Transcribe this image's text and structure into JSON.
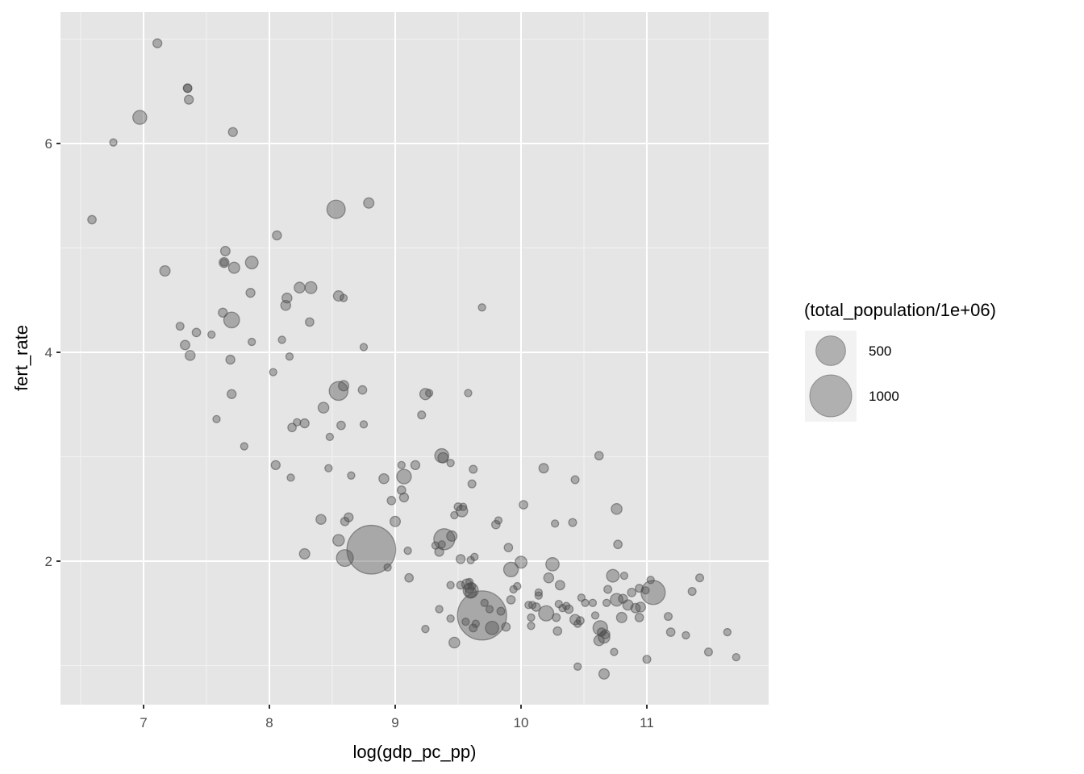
{
  "chart_data": {
    "type": "scatter",
    "title": "",
    "xlabel": "log(gdp_pc_pp)",
    "ylabel": "fert_rate",
    "xlim": [
      6.34,
      11.97
    ],
    "ylim": [
      0.68,
      7.31
    ],
    "x_ticks": [
      7,
      8,
      9,
      10,
      11
    ],
    "x_tick_labels": [
      "7",
      "8",
      "9",
      "10",
      "11"
    ],
    "y_ticks": [
      2,
      4,
      6
    ],
    "y_tick_labels": [
      "2",
      "4",
      "6"
    ],
    "grid": true,
    "legend": {
      "title": "(total_population/1e+06)",
      "position": "right",
      "entries": [
        {
          "label": "500",
          "value": 500
        },
        {
          "label": "1000",
          "value": 1000
        }
      ]
    },
    "point_color": "#4d4d4d",
    "point_alpha": 0.4,
    "size_variable": "total_population/1e+06",
    "points": [
      {
        "x": 7.11,
        "y": 6.96,
        "size": 45
      },
      {
        "x": 7.35,
        "y": 6.53,
        "size": 40
      },
      {
        "x": 7.35,
        "y": 6.53,
        "size": 40
      },
      {
        "x": 7.36,
        "y": 6.42,
        "size": 45
      },
      {
        "x": 6.97,
        "y": 6.25,
        "size": 110
      },
      {
        "x": 7.71,
        "y": 6.11,
        "size": 45
      },
      {
        "x": 6.76,
        "y": 6.01,
        "size": 30
      },
      {
        "x": 6.59,
        "y": 5.27,
        "size": 40
      },
      {
        "x": 8.53,
        "y": 5.37,
        "size": 190
      },
      {
        "x": 8.79,
        "y": 5.43,
        "size": 60
      },
      {
        "x": 8.06,
        "y": 5.12,
        "size": 45
      },
      {
        "x": 7.65,
        "y": 4.97,
        "size": 50
      },
      {
        "x": 7.64,
        "y": 4.86,
        "size": 55
      },
      {
        "x": 7.64,
        "y": 4.86,
        "size": 30
      },
      {
        "x": 7.72,
        "y": 4.81,
        "size": 70
      },
      {
        "x": 7.86,
        "y": 4.86,
        "size": 90
      },
      {
        "x": 7.17,
        "y": 4.78,
        "size": 60
      },
      {
        "x": 8.24,
        "y": 4.62,
        "size": 65
      },
      {
        "x": 8.33,
        "y": 4.62,
        "size": 80
      },
      {
        "x": 8.14,
        "y": 4.52,
        "size": 55
      },
      {
        "x": 8.13,
        "y": 4.45,
        "size": 55
      },
      {
        "x": 7.85,
        "y": 4.57,
        "size": 45
      },
      {
        "x": 8.55,
        "y": 4.54,
        "size": 60
      },
      {
        "x": 8.59,
        "y": 4.52,
        "size": 30
      },
      {
        "x": 9.69,
        "y": 4.43,
        "size": 25
      },
      {
        "x": 7.63,
        "y": 4.38,
        "size": 45
      },
      {
        "x": 7.7,
        "y": 4.31,
        "size": 140
      },
      {
        "x": 7.29,
        "y": 4.25,
        "size": 35
      },
      {
        "x": 8.32,
        "y": 4.29,
        "size": 40
      },
      {
        "x": 7.42,
        "y": 4.19,
        "size": 40
      },
      {
        "x": 7.54,
        "y": 4.17,
        "size": 30
      },
      {
        "x": 7.33,
        "y": 4.07,
        "size": 50
      },
      {
        "x": 8.1,
        "y": 4.12,
        "size": 30
      },
      {
        "x": 7.86,
        "y": 4.1,
        "size": 25
      },
      {
        "x": 8.75,
        "y": 4.05,
        "size": 25
      },
      {
        "x": 7.37,
        "y": 3.97,
        "size": 55
      },
      {
        "x": 7.69,
        "y": 3.93,
        "size": 45
      },
      {
        "x": 8.16,
        "y": 3.96,
        "size": 20
      },
      {
        "x": 8.03,
        "y": 3.81,
        "size": 25
      },
      {
        "x": 8.59,
        "y": 3.68,
        "size": 60
      },
      {
        "x": 8.55,
        "y": 3.63,
        "size": 200
      },
      {
        "x": 8.74,
        "y": 3.64,
        "size": 40
      },
      {
        "x": 9.24,
        "y": 3.6,
        "size": 70
      },
      {
        "x": 9.27,
        "y": 3.61,
        "size": 20
      },
      {
        "x": 9.58,
        "y": 3.61,
        "size": 30
      },
      {
        "x": 7.7,
        "y": 3.6,
        "size": 45
      },
      {
        "x": 8.43,
        "y": 3.47,
        "size": 65
      },
      {
        "x": 9.21,
        "y": 3.4,
        "size": 35
      },
      {
        "x": 7.58,
        "y": 3.36,
        "size": 25
      },
      {
        "x": 8.22,
        "y": 3.33,
        "size": 30
      },
      {
        "x": 8.28,
        "y": 3.32,
        "size": 45
      },
      {
        "x": 8.57,
        "y": 3.3,
        "size": 40
      },
      {
        "x": 8.75,
        "y": 3.31,
        "size": 20
      },
      {
        "x": 8.18,
        "y": 3.28,
        "size": 40
      },
      {
        "x": 8.48,
        "y": 3.19,
        "size": 20
      },
      {
        "x": 7.8,
        "y": 3.1,
        "size": 30
      },
      {
        "x": 9.37,
        "y": 3.01,
        "size": 110
      },
      {
        "x": 9.38,
        "y": 2.99,
        "size": 60
      },
      {
        "x": 9.44,
        "y": 2.94,
        "size": 30
      },
      {
        "x": 10.62,
        "y": 3.01,
        "size": 40
      },
      {
        "x": 8.05,
        "y": 2.92,
        "size": 45
      },
      {
        "x": 9.05,
        "y": 2.92,
        "size": 30
      },
      {
        "x": 9.16,
        "y": 2.92,
        "size": 45
      },
      {
        "x": 10.18,
        "y": 2.89,
        "size": 50
      },
      {
        "x": 8.47,
        "y": 2.89,
        "size": 25
      },
      {
        "x": 9.62,
        "y": 2.88,
        "size": 35
      },
      {
        "x": 8.65,
        "y": 2.82,
        "size": 20
      },
      {
        "x": 8.17,
        "y": 2.8,
        "size": 20
      },
      {
        "x": 8.91,
        "y": 2.79,
        "size": 55
      },
      {
        "x": 9.07,
        "y": 2.81,
        "size": 120
      },
      {
        "x": 10.43,
        "y": 2.78,
        "size": 35
      },
      {
        "x": 9.61,
        "y": 2.74,
        "size": 35
      },
      {
        "x": 9.05,
        "y": 2.68,
        "size": 40
      },
      {
        "x": 9.07,
        "y": 2.61,
        "size": 45
      },
      {
        "x": 8.97,
        "y": 2.58,
        "size": 40
      },
      {
        "x": 10.02,
        "y": 2.54,
        "size": 40
      },
      {
        "x": 9.5,
        "y": 2.52,
        "size": 35
      },
      {
        "x": 9.54,
        "y": 2.52,
        "size": 30
      },
      {
        "x": 9.53,
        "y": 2.48,
        "size": 75
      },
      {
        "x": 10.76,
        "y": 2.5,
        "size": 65
      },
      {
        "x": 9.47,
        "y": 2.44,
        "size": 25
      },
      {
        "x": 8.63,
        "y": 2.42,
        "size": 45
      },
      {
        "x": 8.41,
        "y": 2.4,
        "size": 55
      },
      {
        "x": 8.6,
        "y": 2.38,
        "size": 40
      },
      {
        "x": 9.0,
        "y": 2.38,
        "size": 60
      },
      {
        "x": 9.82,
        "y": 2.39,
        "size": 25
      },
      {
        "x": 9.8,
        "y": 2.35,
        "size": 40
      },
      {
        "x": 10.27,
        "y": 2.36,
        "size": 20
      },
      {
        "x": 10.41,
        "y": 2.37,
        "size": 35
      },
      {
        "x": 9.39,
        "y": 2.21,
        "size": 250
      },
      {
        "x": 9.45,
        "y": 2.24,
        "size": 60
      },
      {
        "x": 8.55,
        "y": 2.2,
        "size": 75
      },
      {
        "x": 9.32,
        "y": 2.15,
        "size": 30
      },
      {
        "x": 9.35,
        "y": 2.09,
        "size": 45
      },
      {
        "x": 9.37,
        "y": 2.16,
        "size": 30
      },
      {
        "x": 9.9,
        "y": 2.13,
        "size": 40
      },
      {
        "x": 10.77,
        "y": 2.16,
        "size": 40
      },
      {
        "x": 8.81,
        "y": 2.11,
        "size": 1350
      },
      {
        "x": 8.6,
        "y": 2.03,
        "size": 160
      },
      {
        "x": 9.1,
        "y": 2.1,
        "size": 25
      },
      {
        "x": 8.28,
        "y": 2.07,
        "size": 60
      },
      {
        "x": 9.52,
        "y": 2.02,
        "size": 45
      },
      {
        "x": 9.6,
        "y": 2.01,
        "size": 30
      },
      {
        "x": 9.63,
        "y": 2.04,
        "size": 25
      },
      {
        "x": 10.0,
        "y": 1.99,
        "size": 80
      },
      {
        "x": 10.25,
        "y": 1.97,
        "size": 100
      },
      {
        "x": 8.94,
        "y": 1.94,
        "size": 25
      },
      {
        "x": 9.92,
        "y": 1.92,
        "size": 120
      },
      {
        "x": 10.73,
        "y": 1.86,
        "size": 90
      },
      {
        "x": 10.82,
        "y": 1.86,
        "size": 30
      },
      {
        "x": 9.11,
        "y": 1.84,
        "size": 40
      },
      {
        "x": 10.22,
        "y": 1.84,
        "size": 55
      },
      {
        "x": 11.42,
        "y": 1.84,
        "size": 35
      },
      {
        "x": 11.03,
        "y": 1.82,
        "size": 25
      },
      {
        "x": 9.52,
        "y": 1.77,
        "size": 35
      },
      {
        "x": 9.57,
        "y": 1.78,
        "size": 60
      },
      {
        "x": 9.59,
        "y": 1.8,
        "size": 30
      },
      {
        "x": 9.61,
        "y": 1.76,
        "size": 25
      },
      {
        "x": 9.97,
        "y": 1.76,
        "size": 20
      },
      {
        "x": 10.31,
        "y": 1.77,
        "size": 50
      },
      {
        "x": 9.44,
        "y": 1.77,
        "size": 30
      },
      {
        "x": 9.6,
        "y": 1.72,
        "size": 130
      },
      {
        "x": 9.6,
        "y": 1.7,
        "size": 70
      },
      {
        "x": 9.59,
        "y": 1.74,
        "size": 50
      },
      {
        "x": 9.94,
        "y": 1.73,
        "size": 30
      },
      {
        "x": 10.69,
        "y": 1.73,
        "size": 35
      },
      {
        "x": 10.88,
        "y": 1.7,
        "size": 40
      },
      {
        "x": 10.94,
        "y": 1.74,
        "size": 35
      },
      {
        "x": 11.05,
        "y": 1.7,
        "size": 330
      },
      {
        "x": 10.99,
        "y": 1.72,
        "size": 30
      },
      {
        "x": 11.36,
        "y": 1.71,
        "size": 35
      },
      {
        "x": 10.14,
        "y": 1.7,
        "size": 20
      },
      {
        "x": 10.14,
        "y": 1.67,
        "size": 20
      },
      {
        "x": 10.48,
        "y": 1.65,
        "size": 25
      },
      {
        "x": 10.76,
        "y": 1.63,
        "size": 90
      },
      {
        "x": 10.81,
        "y": 1.64,
        "size": 45
      },
      {
        "x": 10.57,
        "y": 1.6,
        "size": 30
      },
      {
        "x": 10.51,
        "y": 1.6,
        "size": 25
      },
      {
        "x": 10.68,
        "y": 1.6,
        "size": 20
      },
      {
        "x": 9.92,
        "y": 1.63,
        "size": 40
      },
      {
        "x": 10.06,
        "y": 1.58,
        "size": 30
      },
      {
        "x": 10.09,
        "y": 1.58,
        "size": 30
      },
      {
        "x": 10.12,
        "y": 1.56,
        "size": 40
      },
      {
        "x": 10.3,
        "y": 1.59,
        "size": 30
      },
      {
        "x": 10.33,
        "y": 1.55,
        "size": 30
      },
      {
        "x": 10.36,
        "y": 1.57,
        "size": 30
      },
      {
        "x": 10.38,
        "y": 1.54,
        "size": 40
      },
      {
        "x": 10.85,
        "y": 1.58,
        "size": 60
      },
      {
        "x": 10.91,
        "y": 1.55,
        "size": 50
      },
      {
        "x": 10.95,
        "y": 1.56,
        "size": 55
      },
      {
        "x": 9.35,
        "y": 1.54,
        "size": 30
      },
      {
        "x": 9.75,
        "y": 1.54,
        "size": 25
      },
      {
        "x": 9.84,
        "y": 1.52,
        "size": 35
      },
      {
        "x": 10.2,
        "y": 1.5,
        "size": 130
      },
      {
        "x": 10.08,
        "y": 1.46,
        "size": 20
      },
      {
        "x": 10.28,
        "y": 1.46,
        "size": 35
      },
      {
        "x": 10.43,
        "y": 1.44,
        "size": 60
      },
      {
        "x": 10.47,
        "y": 1.43,
        "size": 35
      },
      {
        "x": 10.59,
        "y": 1.48,
        "size": 20
      },
      {
        "x": 10.8,
        "y": 1.46,
        "size": 60
      },
      {
        "x": 10.94,
        "y": 1.46,
        "size": 40
      },
      {
        "x": 11.17,
        "y": 1.47,
        "size": 35
      },
      {
        "x": 9.69,
        "y": 1.48,
        "size": 1370
      },
      {
        "x": 9.71,
        "y": 1.6,
        "size": 30
      },
      {
        "x": 9.44,
        "y": 1.45,
        "size": 25
      },
      {
        "x": 9.56,
        "y": 1.42,
        "size": 30
      },
      {
        "x": 9.64,
        "y": 1.4,
        "size": 25
      },
      {
        "x": 9.77,
        "y": 1.36,
        "size": 100
      },
      {
        "x": 9.88,
        "y": 1.37,
        "size": 40
      },
      {
        "x": 10.08,
        "y": 1.38,
        "size": 20
      },
      {
        "x": 10.45,
        "y": 1.4,
        "size": 25
      },
      {
        "x": 9.24,
        "y": 1.35,
        "size": 30
      },
      {
        "x": 9.62,
        "y": 1.36,
        "size": 35
      },
      {
        "x": 10.63,
        "y": 1.36,
        "size": 120
      },
      {
        "x": 10.64,
        "y": 1.32,
        "size": 40
      },
      {
        "x": 10.29,
        "y": 1.33,
        "size": 40
      },
      {
        "x": 10.67,
        "y": 1.3,
        "size": 45
      },
      {
        "x": 10.62,
        "y": 1.24,
        "size": 60
      },
      {
        "x": 11.19,
        "y": 1.32,
        "size": 40
      },
      {
        "x": 11.31,
        "y": 1.29,
        "size": 20
      },
      {
        "x": 11.64,
        "y": 1.32,
        "size": 25
      },
      {
        "x": 9.47,
        "y": 1.22,
        "size": 65
      },
      {
        "x": 10.66,
        "y": 1.27,
        "size": 75
      },
      {
        "x": 10.74,
        "y": 1.13,
        "size": 25
      },
      {
        "x": 11.49,
        "y": 1.13,
        "size": 35
      },
      {
        "x": 11.0,
        "y": 1.06,
        "size": 35
      },
      {
        "x": 11.71,
        "y": 1.08,
        "size": 25
      },
      {
        "x": 10.45,
        "y": 0.99,
        "size": 30
      },
      {
        "x": 10.66,
        "y": 0.92,
        "size": 60
      }
    ]
  }
}
